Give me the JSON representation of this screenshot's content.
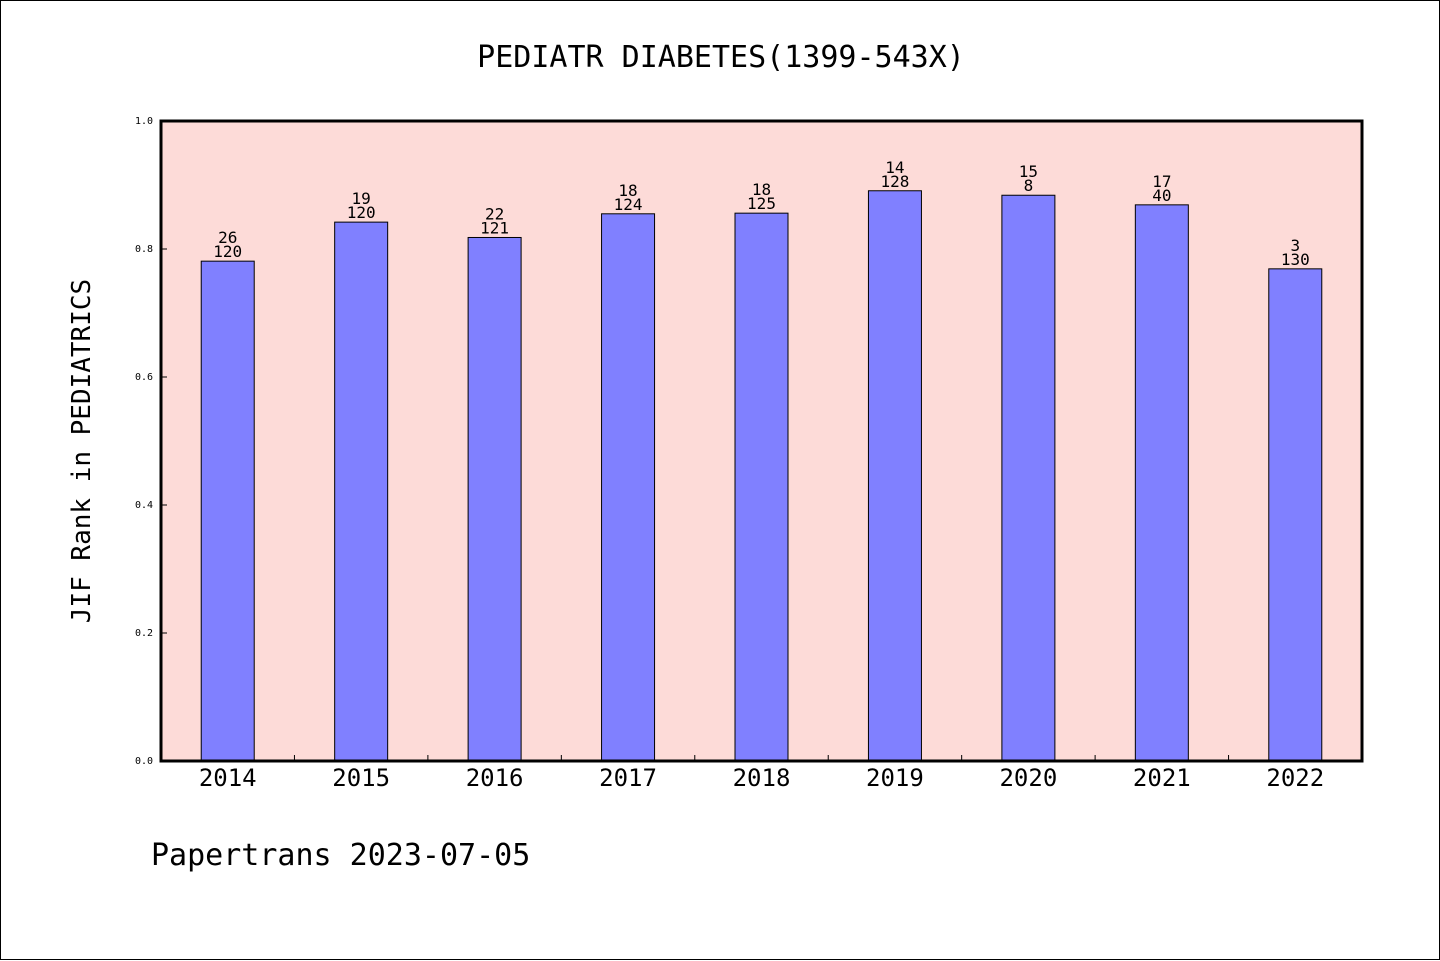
{
  "chart_data": {
    "type": "bar",
    "title": "PEDIATR DIABETES(1399-543X)",
    "xlabel": "",
    "ylabel": "JIF Rank in PEDIATRICS",
    "ylim": [
      0,
      1.0
    ],
    "yticks": [
      "0.0",
      "0.2",
      "0.4",
      "0.6",
      "0.8",
      "1.0"
    ],
    "ytick_values": [
      0,
      0.2,
      0.4,
      0.6,
      0.8,
      1.0
    ],
    "grid": false,
    "categories": [
      "2014",
      "2015",
      "2016",
      "2017",
      "2018",
      "2019",
      "2020",
      "2021",
      "2022"
    ],
    "values": [
      0.781,
      0.842,
      0.818,
      0.855,
      0.856,
      0.891,
      0.884,
      0.869,
      0.769
    ],
    "rank": [
      "26",
      "19",
      "22",
      "18",
      "18",
      "14",
      "15",
      "17",
      "3"
    ],
    "total": [
      "120",
      "120",
      "121",
      "124",
      "125",
      "128",
      "8",
      "40",
      "130"
    ]
  },
  "footer": "Papertrans 2023-07-05",
  "colors": {
    "bar": "#8080ff",
    "plot_bg": "#fddbd8",
    "axis": "#000000",
    "page_bg": "#ffffff"
  }
}
